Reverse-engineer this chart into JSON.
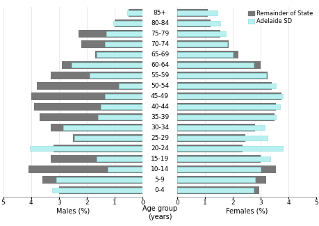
{
  "age_groups": [
    "0-4",
    "5-9",
    "10-14",
    "15-19",
    "20-24",
    "25-29",
    "30-34",
    "35-39",
    "40-44",
    "45-49",
    "50-54",
    "55-59",
    "60-64",
    "65-69",
    "70-74",
    "75-79",
    "80-84",
    "85+"
  ],
  "males_remainder": [
    3.0,
    3.6,
    4.1,
    3.3,
    3.2,
    2.5,
    3.3,
    3.7,
    3.9,
    4.0,
    3.8,
    3.3,
    2.9,
    1.7,
    2.2,
    2.3,
    1.0,
    0.5
  ],
  "males_adelaide": [
    3.25,
    3.1,
    1.25,
    1.65,
    4.05,
    2.45,
    2.85,
    1.6,
    1.5,
    1.35,
    0.85,
    1.9,
    2.55,
    1.65,
    1.35,
    1.3,
    1.05,
    0.55
  ],
  "females_remainder": [
    2.95,
    3.2,
    3.55,
    3.0,
    2.35,
    2.45,
    2.8,
    3.5,
    3.55,
    3.75,
    3.4,
    3.25,
    3.0,
    2.2,
    1.85,
    1.55,
    1.2,
    1.1
  ],
  "females_adelaide": [
    2.75,
    2.8,
    3.0,
    3.35,
    3.8,
    3.25,
    3.15,
    3.55,
    3.7,
    3.8,
    3.55,
    3.2,
    2.75,
    2.0,
    1.8,
    1.75,
    1.55,
    1.45
  ],
  "color_remainder": "#777777",
  "color_adelaide": "#b8f0f0",
  "xlim": 5,
  "xlabel_left": "Males (%)",
  "xlabel_center": "Age group\n(years)",
  "xlabel_right": "Females (%)",
  "legend_label_rem": "Remainder of State",
  "legend_label_adl": "Adelaide SD"
}
